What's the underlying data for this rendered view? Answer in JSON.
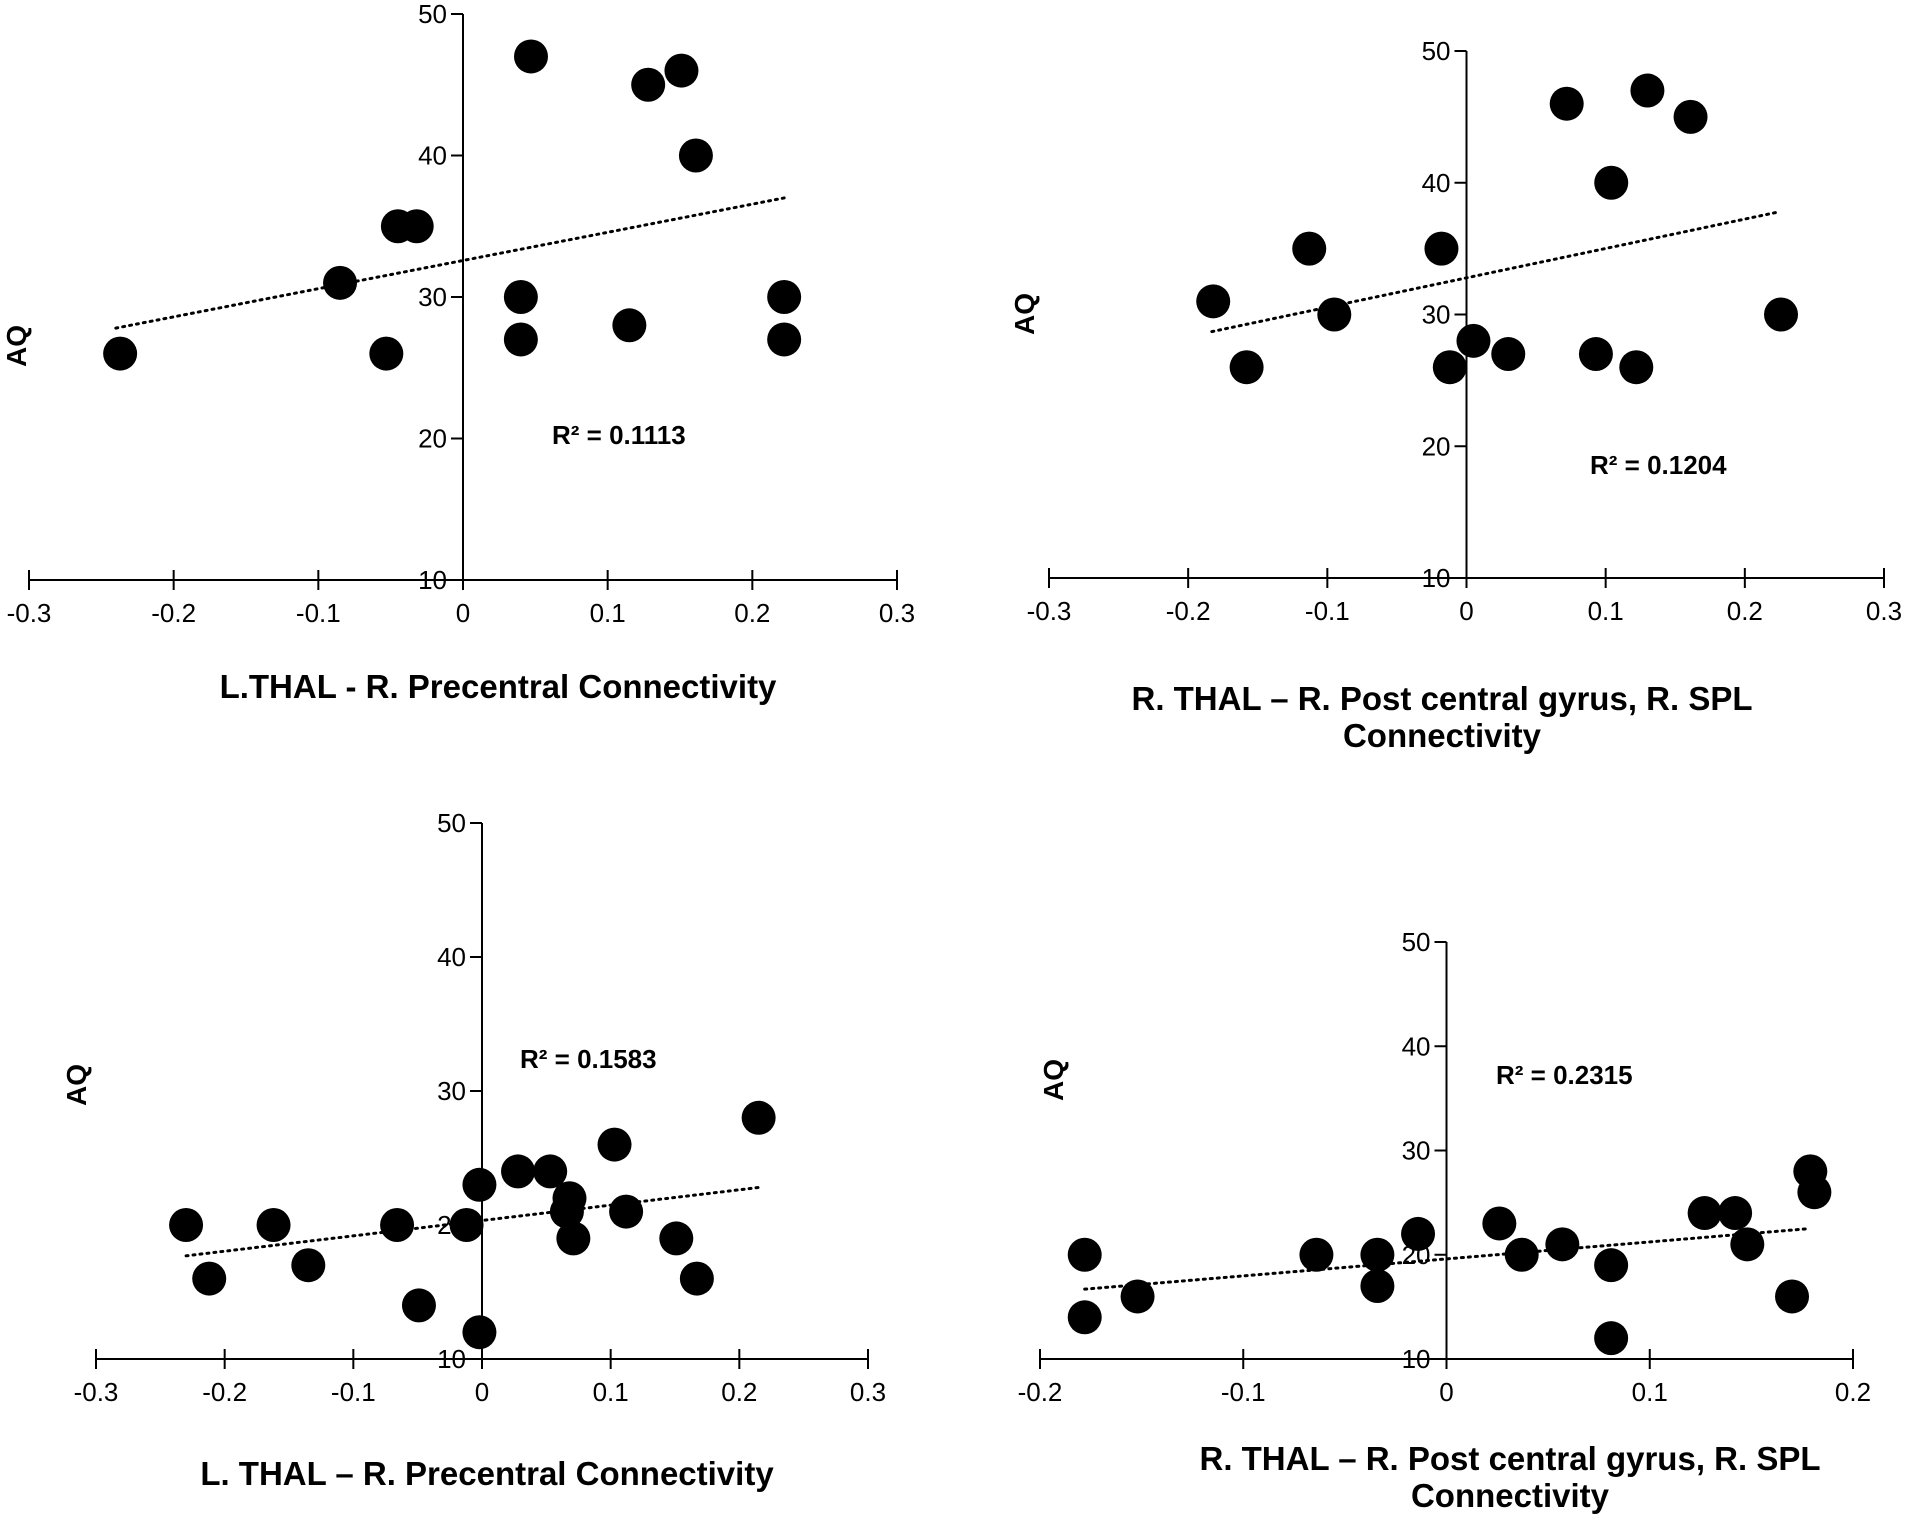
{
  "chart_data": [
    {
      "type": "scatter",
      "title": "",
      "xlabel_lines": [
        "L.THAL - R. Precentral Connectivity"
      ],
      "ylabel": "AQ",
      "xlim": [
        -0.3,
        0.3
      ],
      "ylim": [
        10,
        50
      ],
      "xticks": [
        -0.3,
        -0.2,
        -0.1,
        0,
        0.1,
        0.2,
        0.3
      ],
      "xtick_labels": [
        "-0.3",
        "-0.2",
        "-0.1",
        "0",
        "0.1",
        "0.2",
        "0.3"
      ],
      "yticks": [
        10,
        20,
        30,
        40,
        50
      ],
      "ytick_labels": [
        "10",
        "20",
        "30",
        "40",
        "50"
      ],
      "annotation": "R² = 0.1113",
      "trendline": {
        "x": [
          -0.24,
          0.222
        ],
        "y": [
          27.8,
          37.0
        ],
        "style": "dotted"
      },
      "x": [
        -0.237,
        -0.085,
        -0.053,
        -0.045,
        -0.032,
        0.04,
        0.04,
        0.047,
        0.115,
        0.128,
        0.151,
        0.161,
        0.222,
        0.222
      ],
      "y": [
        26,
        31,
        26,
        35,
        35,
        30,
        27,
        47,
        28,
        45,
        46,
        40,
        30,
        27
      ]
    },
    {
      "type": "scatter",
      "title": "",
      "xlabel_lines": [
        "R. THAL – R. Post central gyrus, R. SPL",
        "Connectivity"
      ],
      "ylabel": "AQ",
      "xlim": [
        -0.3,
        0.3
      ],
      "ylim": [
        10,
        50
      ],
      "xticks": [
        -0.3,
        -0.2,
        -0.1,
        0,
        0.1,
        0.2,
        0.3
      ],
      "xtick_labels": [
        "-0.3",
        "-0.2",
        "-0.1",
        "0",
        "0.1",
        "0.2",
        "0.3"
      ],
      "yticks": [
        10,
        20,
        30,
        40,
        50
      ],
      "ytick_labels": [
        "10",
        "20",
        "30",
        "40",
        "50"
      ],
      "annotation": "R² = 0.1204",
      "trendline": {
        "x": [
          -0.183,
          0.225
        ],
        "y": [
          28.7,
          37.8
        ],
        "style": "dotted"
      },
      "x": [
        -0.182,
        -0.158,
        -0.113,
        -0.095,
        -0.018,
        -0.012,
        0.005,
        0.03,
        0.072,
        0.093,
        0.104,
        0.122,
        0.13,
        0.161,
        0.226
      ],
      "y": [
        31,
        26,
        35,
        30,
        35,
        26,
        28,
        27,
        46,
        27,
        40,
        26,
        47,
        45,
        30
      ]
    },
    {
      "type": "scatter",
      "title": "",
      "xlabel_lines": [
        "L. THAL – R. Precentral Connectivity"
      ],
      "ylabel": "AQ",
      "xlim": [
        -0.3,
        0.3
      ],
      "ylim": [
        10,
        50
      ],
      "xticks": [
        -0.3,
        -0.2,
        -0.1,
        0,
        0.1,
        0.2,
        0.3
      ],
      "xtick_labels": [
        "-0.3",
        "-0.2",
        "-0.1",
        "0",
        "0.1",
        "0.2",
        "0.3"
      ],
      "yticks": [
        10,
        20,
        30,
        40,
        50
      ],
      "ytick_labels": [
        "10",
        "20",
        "30",
        "40",
        "50"
      ],
      "annotation": "R² = 0.1583",
      "trendline": {
        "x": [
          -0.23,
          0.215
        ],
        "y": [
          17.7,
          22.8
        ],
        "style": "dotted"
      },
      "x": [
        -0.23,
        -0.212,
        -0.162,
        -0.135,
        -0.066,
        -0.049,
        -0.012,
        -0.002,
        -0.002,
        0.028,
        0.053,
        0.066,
        0.068,
        0.071,
        0.103,
        0.112,
        0.151,
        0.167,
        0.215
      ],
      "y": [
        20,
        16,
        20,
        17,
        20,
        14,
        20,
        23,
        12,
        24,
        24,
        21,
        22,
        19,
        26,
        21,
        19,
        16,
        28
      ]
    },
    {
      "type": "scatter",
      "title": "",
      "xlabel_lines": [
        "R. THAL – R. Post central gyrus, R. SPL",
        "Connectivity"
      ],
      "ylabel": "AQ",
      "xlim": [
        -0.2,
        0.2
      ],
      "ylim": [
        10,
        50
      ],
      "xticks": [
        -0.2,
        -0.1,
        0,
        0.1,
        0.2
      ],
      "xtick_labels": [
        "-0.2",
        "-0.1",
        "0",
        "0.1",
        "0.2"
      ],
      "yticks": [
        10,
        20,
        30,
        40,
        50
      ],
      "ytick_labels": [
        "10",
        "20",
        "30",
        "40",
        "50"
      ],
      "annotation": "R² = 0.2315",
      "trendline": {
        "x": [
          -0.178,
          0.178
        ],
        "y": [
          16.7,
          22.5
        ],
        "style": "dotted"
      },
      "x": [
        -0.178,
        -0.178,
        -0.152,
        -0.064,
        -0.034,
        -0.034,
        -0.014,
        0.026,
        0.037,
        0.057,
        0.081,
        0.081,
        0.127,
        0.142,
        0.148,
        0.17,
        0.179,
        0.181
      ],
      "y": [
        20,
        14,
        16,
        20,
        20,
        17,
        22,
        23,
        20,
        21,
        19,
        12,
        24,
        24,
        21,
        16,
        28,
        26
      ]
    }
  ]
}
